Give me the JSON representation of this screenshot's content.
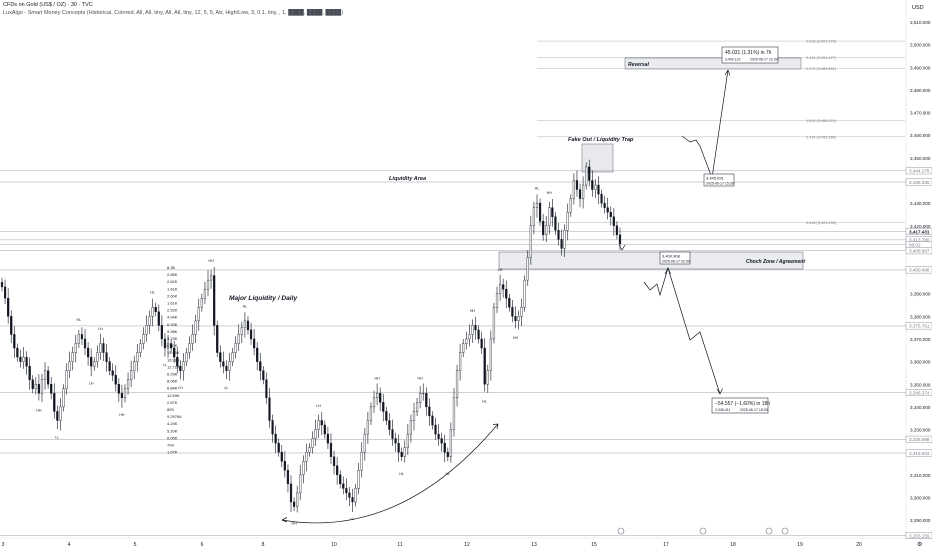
{
  "header": {
    "symbol_line": "CFDs on Gold (US$ / OZ) · 30 · TVC",
    "indicator_line": "LuxAlgo - Smart Money Concepts (Historical, Colored, All, All, tiny, All, All, tiny, 12, 5, 5, Atr, High/Low, 3, 0.1, tiny, , 1, ████, ████, ████)"
  },
  "price_scale": {
    "currency": "USD",
    "ticks": [
      "3,510.000",
      "3,500.000",
      "3,490.000",
      "3,480.000",
      "3,470.000",
      "3,460.000",
      "3,450.000",
      "3,440.000",
      "3,430.000",
      "3,420.000",
      "3,410.000",
      "3,400.000",
      "3,390.000",
      "3,380.000",
      "3,370.000",
      "3,360.000",
      "3,350.000",
      "3,340.000",
      "3,330.000",
      "3,320.000",
      "3,310.000",
      "3,300.000",
      "3,290.000"
    ],
    "tick_values": [
      3510,
      3500,
      3490,
      3480,
      3470,
      3460,
      3450,
      3440,
      3430,
      3420,
      3410,
      3400,
      3390,
      3380,
      3370,
      3360,
      3350,
      3340,
      3330,
      3320,
      3310,
      3300,
      3290
    ],
    "labels": [
      {
        "text": "3,444.275",
        "value": 3444.275,
        "color": "#787b86"
      },
      {
        "text": "3,439.335",
        "value": 3439.335,
        "color": "#787b86"
      },
      {
        "text": "3,417.431",
        "value": 3417.431,
        "color": "#131722"
      },
      {
        "text": "3,413.780",
        "value": 3413.78,
        "color": "#787b86"
      },
      {
        "text": "09:02",
        "value": 3411.6,
        "color": "#787b86"
      },
      {
        "text": "3,408.967",
        "value": 3408.967,
        "color": "#787b86"
      },
      {
        "text": "3,400.496",
        "value": 3400.496,
        "color": "#787b86"
      },
      {
        "text": "3,375.761",
        "value": 3375.761,
        "color": "#787b86"
      },
      {
        "text": "3,346.374",
        "value": 3346.374,
        "color": "#787b86"
      },
      {
        "text": "3,325.698",
        "value": 3325.698,
        "color": "#787b86"
      },
      {
        "text": "3,319.633",
        "value": 3319.633,
        "color": "#787b86"
      },
      {
        "text": "3,283.155",
        "value": 3283.155,
        "color": "#787b86"
      }
    ]
  },
  "time_axis": {
    "ticks": [
      "3",
      "4",
      "5",
      "6",
      "8",
      "10",
      "11",
      "12",
      "13",
      "15",
      "17",
      "18",
      "19",
      "20"
    ]
  },
  "fib_levels": [
    {
      "label": "2.618 (3,501.575)",
      "value": 3501.575
    },
    {
      "label": "2.414 (3,494.427)",
      "value": 3494.427
    },
    {
      "label": "2.272 (3,489.451)",
      "value": 3489.451
    },
    {
      "label": "1.618 (3,466.524)",
      "value": 3466.524
    },
    {
      "label": "1.414 (3,459.286)",
      "value": 3459.286
    },
    {
      "label": "0.618 (3,421.496)",
      "value": 3421.496
    }
  ],
  "annotations": {
    "liquidity_area": "Liquidity Area",
    "major_liquidity": "Major  Liquidity  / Daily",
    "fake_out": "Fake Out / Liquidity Trap",
    "reversal": "Reversal",
    "choch_zone": "Choch Zone / Agreement"
  },
  "callouts": {
    "top": {
      "line1": "45.031 (1.31%) in 7h",
      "line2": "3,490.122",
      "line3": "2025-06-17  22:30"
    },
    "mid": {
      "line1": "3,445.091",
      "line2": "2025-06-17 15:30"
    },
    "choch": {
      "line1": "3,400.968",
      "line2": "2025-06-17 02:30"
    },
    "bottom": {
      "line1": "−54.557 (−1.60%) in 18h",
      "line2": "3,346.411",
      "line3": "2025-06-17  18:30"
    }
  },
  "chart_data": {
    "type": "candlestick",
    "symbol": "CFDs on Gold (US$ / OZ)",
    "timeframe": "30",
    "ylim": [
      3281,
      3514
    ],
    "price_axis": "right",
    "closes": [
      3393,
      3388,
      3380,
      3372,
      3366,
      3362,
      3360,
      3362,
      3358,
      3352,
      3348,
      3350,
      3346,
      3352,
      3356,
      3350,
      3346,
      3338,
      3334,
      3340,
      3348,
      3356,
      3360,
      3364,
      3368,
      3372,
      3370,
      3366,
      3362,
      3358,
      3360,
      3364,
      3368,
      3364,
      3360,
      3356,
      3354,
      3350,
      3346,
      3344,
      3348,
      3352,
      3356,
      3360,
      3364,
      3368,
      3372,
      3376,
      3380,
      3384,
      3382,
      3376,
      3370,
      3366,
      3368,
      3366,
      3362,
      3358,
      3356,
      3360,
      3364,
      3368,
      3372,
      3378,
      3384,
      3388,
      3392,
      3396,
      3398,
      3376,
      3364,
      3360,
      3358,
      3356,
      3360,
      3364,
      3368,
      3372,
      3375,
      3378,
      3374,
      3370,
      3366,
      3360,
      3356,
      3352,
      3344,
      3334,
      3328,
      3324,
      3320,
      3316,
      3312,
      3306,
      3298,
      3296,
      3302,
      3310,
      3316,
      3320,
      3322,
      3326,
      3330,
      3334,
      3332,
      3328,
      3324,
      3318,
      3314,
      3310,
      3306,
      3304,
      3302,
      3300,
      3298,
      3304,
      3312,
      3320,
      3328,
      3334,
      3340,
      3344,
      3346,
      3342,
      3338,
      3334,
      3330,
      3326,
      3324,
      3320,
      3318,
      3322,
      3328,
      3334,
      3338,
      3342,
      3346,
      3346,
      3340,
      3336,
      3332,
      3328,
      3326,
      3324,
      3320,
      3318,
      3330,
      3344,
      3356,
      3364,
      3368,
      3370,
      3372,
      3376,
      3374,
      3370,
      3366,
      3350,
      3356,
      3370,
      3384,
      3390,
      3394,
      3392,
      3388,
      3384,
      3380,
      3378,
      3380,
      3384,
      3396,
      3406,
      3420,
      3428,
      3430,
      3422,
      3416,
      3420,
      3428,
      3424,
      3418,
      3414,
      3410,
      3418,
      3426,
      3432,
      3440,
      3436,
      3432,
      3438,
      3446,
      3440,
      3436,
      3438,
      3434,
      3430,
      3428,
      3426,
      3424,
      3420,
      3416,
      3412
    ],
    "swing_labels": [
      "HH",
      "LL",
      "HL",
      "LH",
      "LH",
      "HH",
      "HL",
      "LL",
      "LH",
      "HH",
      "LL",
      "HL",
      "HH",
      "LH",
      "LL",
      "HH",
      "HL",
      "HH",
      "HL",
      "HH",
      "HL",
      "LH",
      "HH",
      "HL",
      "HH"
    ],
    "volume_profile": [
      "8.36",
      "2.85K",
      "2.62K",
      "1.61K",
      "2.60K",
      "1.61K",
      "2.52K",
      "4.94K",
      "6.93K",
      "9.98K",
      "3.79K",
      "8.40K",
      "15.86K",
      "16.98K",
      "12.71K",
      "6.29K",
      "8.06K",
      "6.84K",
      "12.69K",
      "2.67K",
      "893",
      "9.29766",
      "4.24K",
      "5.20K",
      "6.05K",
      "704",
      "1.57K"
    ]
  }
}
